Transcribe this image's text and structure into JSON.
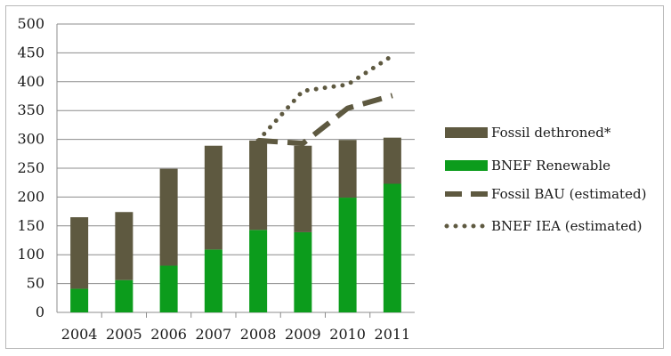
{
  "chart_data": {
    "type": "bar",
    "stacked": true,
    "categories": [
      "2004",
      "2005",
      "2006",
      "2007",
      "2008",
      "2009",
      "2010",
      "2011"
    ],
    "ylim": [
      0,
      500
    ],
    "yticks": [
      "0",
      "50",
      "100",
      "150",
      "200",
      "250",
      "300",
      "350",
      "400",
      "450",
      "500"
    ],
    "grid": true,
    "legend_position": "right",
    "series": [
      {
        "name": "Fossil dethroned*",
        "kind": "bar",
        "color": "#5e5940",
        "values": [
          124,
          118,
          168,
          180,
          155,
          150,
          100,
          80
        ]
      },
      {
        "name": "BNEF Renewable",
        "kind": "bar",
        "color": "#0c9c1c",
        "values": [
          41,
          56,
          81,
          109,
          143,
          139,
          199,
          223
        ]
      },
      {
        "name": "Fossil BAU (estimated)",
        "kind": "line",
        "style": "dashed",
        "color": "#5e5940",
        "x": [
          "2008",
          "2009",
          "2010",
          "2011"
        ],
        "values": [
          298,
          293,
          354,
          376
        ]
      },
      {
        "name": "BNEF IEA (estimated)",
        "kind": "line",
        "style": "dotted",
        "color": "#5e5940",
        "x": [
          "2008",
          "2009",
          "2010",
          "2011"
        ],
        "values": [
          298,
          384,
          395,
          445
        ]
      }
    ]
  }
}
